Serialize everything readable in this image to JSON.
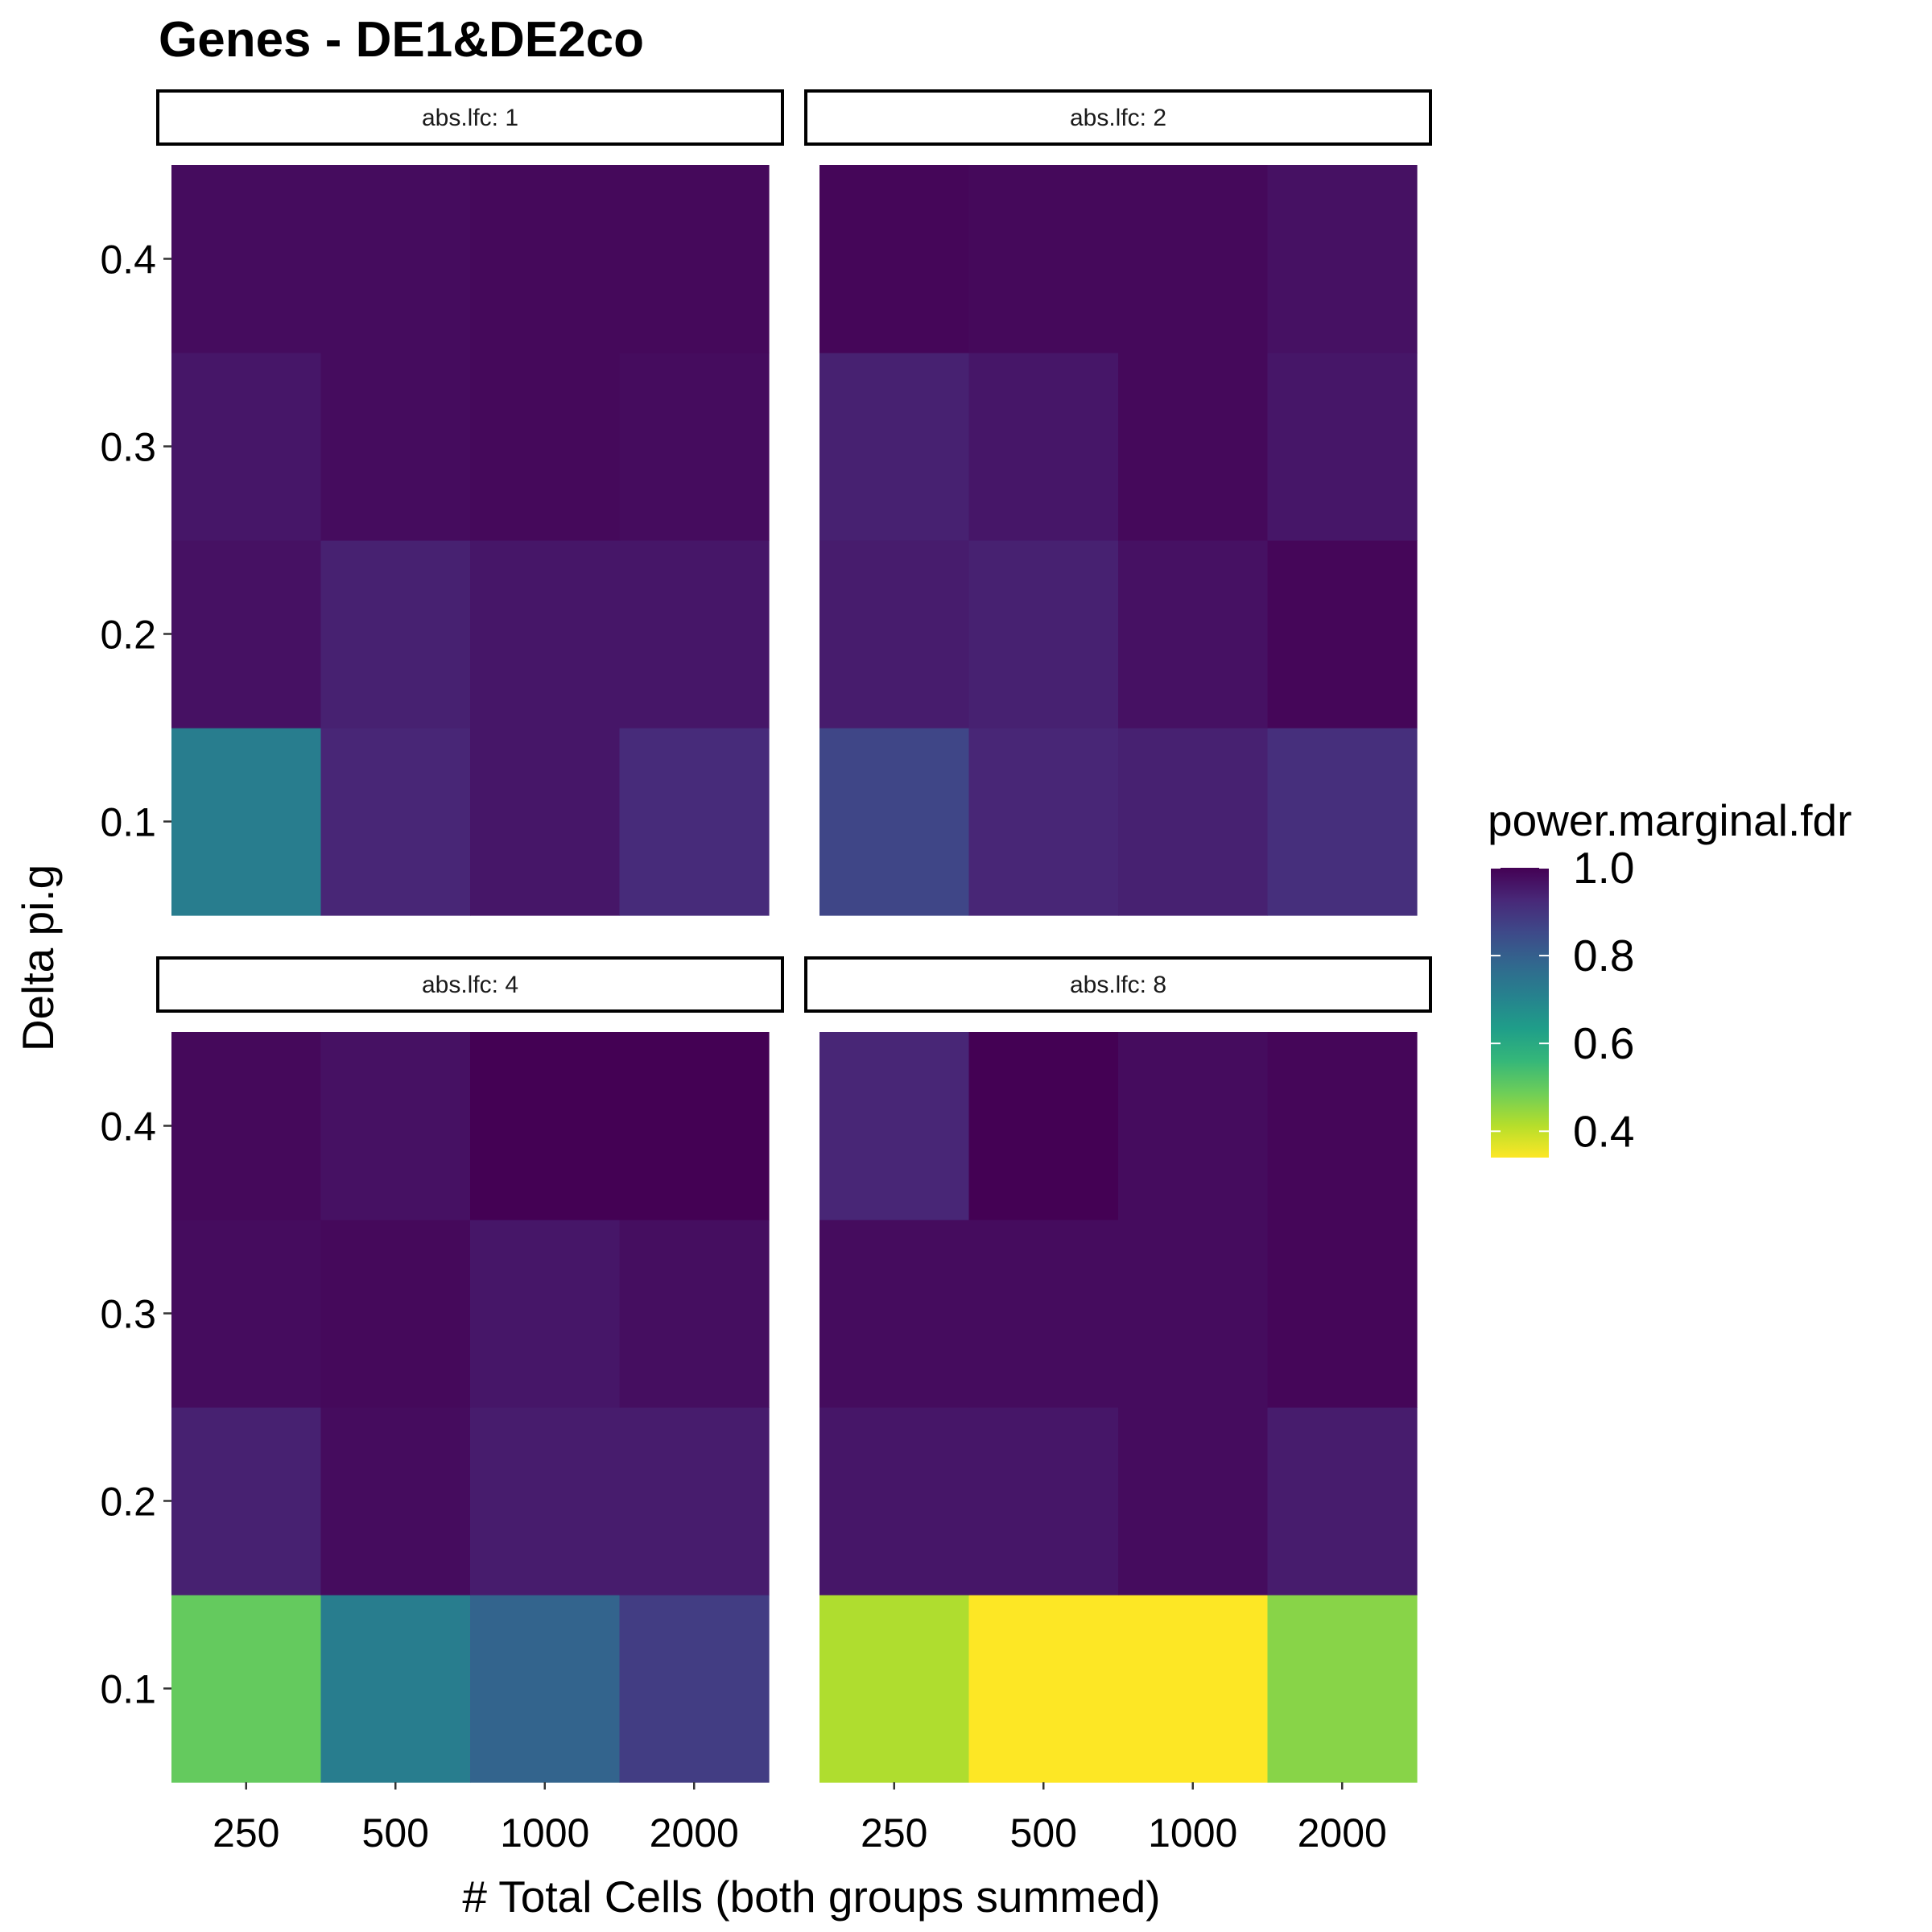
{
  "chart_data": {
    "type": "heatmap",
    "title": "Genes - DE1&DE2co",
    "xlabel": "# Total Cells (both groups summed)",
    "ylabel": "Delta pi.g",
    "x_categories": [
      "250",
      "500",
      "1000",
      "2000"
    ],
    "y_categories": [
      "0.1",
      "0.2",
      "0.3",
      "0.4"
    ],
    "facet_variable": "abs.lfc",
    "colorscale": "viridis",
    "fill_label": "power.marginal.fdr",
    "legend_breaks": [
      "1.0",
      "0.8",
      "0.6",
      "0.4"
    ],
    "fill_range": [
      0.34,
      1.0
    ],
    "legend_position": "right",
    "grid": false,
    "panels": [
      {
        "strip": "abs.lfc: 1",
        "values": {
          "0.1": [
            0.72,
            0.93,
            0.96,
            0.92
          ],
          "0.2": [
            0.97,
            0.94,
            0.96,
            0.96
          ],
          "0.3": [
            0.96,
            0.98,
            0.985,
            0.98
          ],
          "0.4": [
            0.98,
            0.98,
            0.985,
            0.985
          ]
        }
      },
      {
        "strip": "abs.lfc: 2",
        "values": {
          "0.1": [
            0.86,
            0.93,
            0.94,
            0.91
          ],
          "0.2": [
            0.95,
            0.94,
            0.97,
            0.99
          ],
          "0.3": [
            0.94,
            0.96,
            0.985,
            0.96
          ],
          "0.4": [
            0.99,
            0.985,
            0.985,
            0.97
          ]
        }
      },
      {
        "strip": "abs.lfc: 4",
        "values": {
          "0.1": [
            0.5,
            0.72,
            0.79,
            0.88
          ],
          "0.2": [
            0.94,
            0.98,
            0.95,
            0.95
          ],
          "0.3": [
            0.98,
            0.985,
            0.96,
            0.975
          ],
          "0.4": [
            0.985,
            0.97,
            1.0,
            1.0
          ]
        }
      },
      {
        "strip": "abs.lfc: 8",
        "values": {
          "0.1": [
            0.42,
            0.34,
            0.34,
            0.46
          ],
          "0.2": [
            0.96,
            0.96,
            0.98,
            0.95
          ],
          "0.3": [
            0.98,
            0.98,
            0.98,
            0.99
          ],
          "0.4": [
            0.93,
            1.0,
            0.98,
            0.99
          ]
        }
      }
    ]
  }
}
